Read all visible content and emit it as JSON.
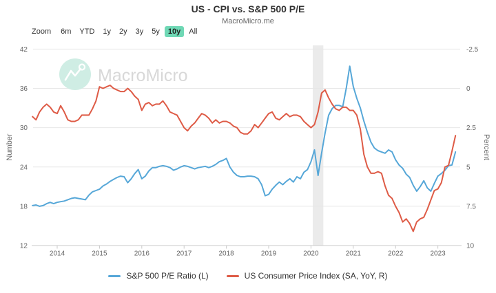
{
  "header": {
    "title": "US - CPI vs. S&P 500 P/E",
    "subtitle": "MacroMicro.me"
  },
  "toolbar": {
    "zoom_label": "Zoom",
    "active_bg": "#6FD8B5",
    "ranges": [
      {
        "label": "6m",
        "active": false
      },
      {
        "label": "YTD",
        "active": false
      },
      {
        "label": "1y",
        "active": false
      },
      {
        "label": "2y",
        "active": false
      },
      {
        "label": "3y",
        "active": false
      },
      {
        "label": "5y",
        "active": false
      },
      {
        "label": "10y",
        "active": true
      },
      {
        "label": "All",
        "active": false
      }
    ]
  },
  "watermark": {
    "brand": "MacroMicro",
    "circle_color": "#CFEDE4",
    "text_color": "#D8D8D8"
  },
  "chart_data": {
    "type": "line",
    "frequency": "monthly",
    "x_start": "2013-06",
    "x_end": "2023-06",
    "x_tick_labels": [
      "2014",
      "2015",
      "2016",
      "2017",
      "2018",
      "2019",
      "2020",
      "2021",
      "2022",
      "2023"
    ],
    "left_axis": {
      "title": "Number",
      "ticks": [
        12,
        18,
        24,
        30,
        36,
        42
      ],
      "range": [
        12,
        42
      ]
    },
    "right_axis": {
      "title": "Percent",
      "ticks": [
        -2.5,
        0,
        2.5,
        5,
        7.5,
        10
      ],
      "range": [
        -2.5,
        10
      ],
      "inverted": true
    },
    "grid": "horizontal-only",
    "recession_band": {
      "from": "2020-02",
      "to": "2020-04",
      "color": "#EBEBEB"
    },
    "series": [
      {
        "name": "S&P 500 P/E Ratio (L)",
        "slug": "sp500-pe-ratio",
        "axis": "left",
        "color": "#56A7D8",
        "values": [
          18.1,
          18.2,
          18.0,
          18.1,
          18.4,
          18.6,
          18.4,
          18.6,
          18.7,
          18.8,
          19.0,
          19.2,
          19.3,
          19.2,
          19.1,
          19.0,
          19.7,
          20.2,
          20.4,
          20.6,
          21.1,
          21.4,
          21.8,
          22.1,
          22.4,
          22.6,
          22.5,
          21.6,
          22.2,
          23.0,
          23.6,
          22.2,
          22.6,
          23.4,
          23.9,
          23.9,
          24.1,
          24.2,
          24.1,
          23.9,
          23.5,
          23.7,
          24.0,
          24.2,
          24.1,
          23.9,
          23.7,
          23.9,
          24.0,
          24.1,
          23.9,
          24.1,
          24.4,
          24.8,
          25.0,
          25.3,
          24.0,
          23.2,
          22.7,
          22.5,
          22.5,
          22.6,
          22.6,
          22.5,
          22.2,
          21.3,
          19.6,
          19.8,
          20.6,
          21.2,
          21.7,
          21.3,
          21.8,
          22.2,
          21.7,
          22.5,
          22.2,
          23.2,
          23.6,
          24.8,
          26.6,
          22.7,
          26.1,
          29.2,
          31.9,
          32.9,
          33.4,
          33.4,
          33.2,
          36.0,
          39.4,
          36.3,
          34.5,
          33.0,
          31.0,
          29.3,
          27.8,
          26.9,
          26.5,
          26.3,
          26.1,
          26.6,
          26.3,
          25.1,
          24.3,
          23.8,
          22.9,
          22.4,
          21.2,
          20.3,
          21.0,
          21.9,
          20.8,
          20.3,
          21.5,
          22.6,
          23.0,
          23.5,
          24.2,
          24.3,
          26.3
        ]
      },
      {
        "name": "US Consumer Price Index (SA, YoY, R)",
        "slug": "us-cpi-yoy",
        "axis": "right",
        "color": "#DE5B46",
        "values": [
          1.8,
          2.0,
          1.5,
          1.2,
          1.0,
          1.2,
          1.5,
          1.6,
          1.1,
          1.5,
          2.0,
          2.1,
          2.1,
          2.0,
          1.7,
          1.7,
          1.7,
          1.3,
          0.8,
          -0.1,
          0.0,
          -0.1,
          -0.2,
          0.0,
          0.1,
          0.2,
          0.2,
          0.0,
          0.2,
          0.5,
          0.7,
          1.4,
          1.0,
          0.9,
          1.1,
          1.0,
          1.0,
          0.8,
          1.1,
          1.5,
          1.6,
          1.7,
          2.1,
          2.5,
          2.7,
          2.4,
          2.2,
          1.9,
          1.6,
          1.7,
          1.9,
          2.2,
          2.0,
          2.2,
          2.1,
          2.1,
          2.2,
          2.4,
          2.5,
          2.8,
          2.9,
          2.9,
          2.7,
          2.3,
          2.5,
          2.2,
          1.9,
          1.6,
          1.5,
          1.9,
          2.0,
          1.8,
          1.6,
          1.8,
          1.7,
          1.7,
          1.8,
          2.1,
          2.3,
          2.5,
          2.3,
          1.5,
          0.3,
          0.1,
          0.6,
          1.0,
          1.3,
          1.4,
          1.2,
          1.2,
          1.4,
          1.4,
          1.7,
          2.6,
          4.2,
          5.0,
          5.4,
          5.4,
          5.3,
          5.4,
          6.2,
          6.8,
          7.0,
          7.5,
          7.9,
          8.5,
          8.3,
          8.6,
          9.1,
          8.5,
          8.3,
          8.2,
          7.7,
          7.1,
          6.5,
          6.4,
          6.0,
          5.0,
          4.9,
          4.0,
          3.0
        ]
      }
    ]
  }
}
